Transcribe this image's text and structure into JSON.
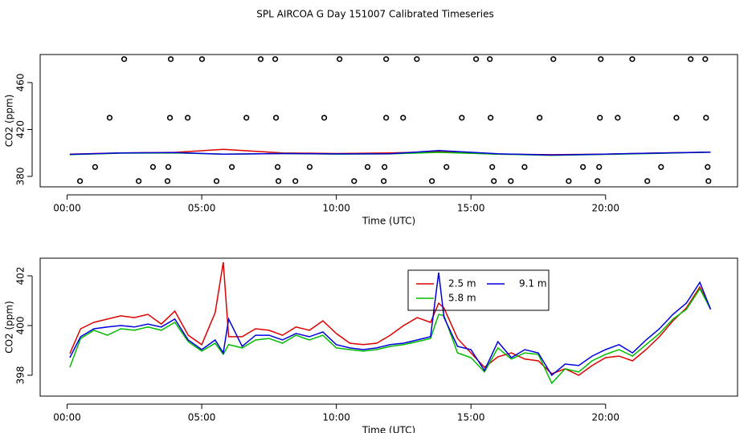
{
  "chart_data": [
    {
      "type": "scatter",
      "title": "SPL AIRCOA G  Day 151007  Calibrated Timeseries",
      "xlabel": "Time (UTC)",
      "ylabel": "CO2 (ppm)",
      "xlim": [
        -1.0,
        24.9
      ],
      "ylim": [
        371.1,
        483.9
      ],
      "xticks": [
        {
          "value": 0,
          "label": "00:00"
        },
        {
          "value": 5,
          "label": "05:00"
        },
        {
          "value": 10,
          "label": "10:00"
        },
        {
          "value": 15,
          "label": "15:00"
        },
        {
          "value": 20,
          "label": "20:00"
        }
      ],
      "yticks": [
        380,
        420,
        460
      ],
      "color": "#000000",
      "x": [
        2.12,
        3.85,
        5.01,
        7.19,
        7.73,
        10.12,
        11.85,
        12.99,
        15.19,
        15.7,
        18.06,
        19.82,
        20.99,
        23.16,
        23.7,
        1.58,
        3.82,
        4.48,
        6.66,
        7.76,
        9.55,
        11.85,
        12.48,
        14.66,
        15.73,
        17.55,
        19.79,
        20.45,
        22.63,
        23.73,
        1.04,
        3.19,
        3.76,
        6.12,
        7.82,
        9.01,
        11.16,
        11.79,
        14.09,
        15.79,
        16.99,
        19.16,
        19.76,
        22.06,
        23.79,
        0.48,
        2.66,
        3.73,
        5.55,
        7.85,
        8.48,
        10.66,
        11.76,
        13.55,
        15.85,
        16.48,
        18.63,
        19.7,
        21.55,
        23.82
      ],
      "values": [
        480,
        480,
        480,
        480,
        480,
        480,
        480,
        480,
        480,
        480,
        480,
        480,
        480,
        480,
        480,
        430,
        430,
        430,
        430,
        430,
        430,
        430,
        430,
        430,
        430,
        430,
        430,
        430,
        430,
        430,
        388,
        388,
        388,
        388,
        388,
        388,
        388,
        388,
        388,
        388,
        388,
        388,
        388,
        388,
        388,
        376,
        376,
        376,
        376,
        376,
        376,
        376,
        376,
        376,
        376,
        376,
        376,
        376,
        376,
        376
      ],
      "overlay": {
        "type": "line",
        "x": [
          0.1,
          2,
          4,
          5.8,
          8,
          10,
          12,
          13.8,
          16,
          18,
          20,
          22,
          23.9
        ],
        "series": [
          {
            "color": "#dd0000",
            "values": [
              399,
              400,
              400.5,
              403,
              400,
              399.5,
              400,
              401,
              399,
              398.5,
              399,
              400,
              400.7
            ]
          },
          {
            "color": "#00bb00",
            "values": [
              398.5,
              399.8,
              400,
              399,
              399.5,
              399,
              399.2,
              400.5,
              399,
              398,
              398.8,
              399.7,
              400.7
            ]
          },
          {
            "color": "#0000dd",
            "values": [
              398.8,
              400,
              400.3,
              399,
              399.5,
              399.2,
              399.3,
              402,
              399.3,
              398.2,
              399,
              399.9,
              400.7
            ]
          }
        ]
      }
    },
    {
      "type": "line",
      "xlabel": "Time (UTC)",
      "ylabel": "CO2 (ppm)",
      "xlim": [
        -1.0,
        24.9
      ],
      "ylim": [
        397.16,
        402.71
      ],
      "xticks": [
        {
          "value": 0,
          "label": "00:00"
        },
        {
          "value": 5,
          "label": "05:00"
        },
        {
          "value": 10,
          "label": "10:00"
        },
        {
          "value": 15,
          "label": "15:00"
        },
        {
          "value": 20,
          "label": "20:00"
        }
      ],
      "yticks": [
        398,
        400,
        402
      ],
      "legend": "top",
      "x": [
        0.1,
        0.5,
        1.0,
        1.5,
        2.0,
        2.5,
        3.0,
        3.5,
        4.0,
        4.5,
        5.0,
        5.5,
        5.8,
        6.0,
        6.5,
        7.0,
        7.5,
        8.0,
        8.5,
        9.0,
        9.5,
        10.0,
        10.5,
        11.0,
        11.5,
        12.0,
        12.5,
        13.0,
        13.5,
        13.8,
        14.0,
        14.5,
        15.0,
        15.5,
        16.0,
        16.5,
        17.0,
        17.5,
        18.0,
        18.5,
        19.0,
        19.5,
        20.0,
        20.5,
        21.0,
        21.5,
        22.0,
        22.5,
        23.0,
        23.5,
        23.9
      ],
      "series": [
        {
          "name": "2.5 m",
          "color": "#dd0000",
          "values": [
            398.87,
            399.87,
            400.13,
            400.26,
            400.39,
            400.32,
            400.45,
            400.06,
            400.58,
            399.61,
            399.23,
            400.52,
            402.55,
            399.55,
            399.55,
            399.87,
            399.81,
            399.61,
            399.94,
            399.81,
            400.19,
            399.68,
            399.29,
            399.23,
            399.29,
            399.61,
            400.0,
            400.32,
            400.13,
            400.9,
            400.7,
            399.48,
            398.9,
            398.32,
            398.74,
            398.9,
            398.65,
            398.58,
            398.06,
            398.26,
            398.0,
            398.39,
            398.71,
            398.77,
            398.58,
            399.03,
            399.55,
            400.19,
            400.71,
            401.55,
            400.65
          ]
        },
        {
          "name": "5.8 m",
          "color": "#00bb00",
          "values": [
            398.32,
            399.48,
            399.81,
            399.61,
            399.87,
            399.81,
            399.94,
            399.81,
            400.13,
            399.35,
            398.97,
            399.29,
            398.84,
            399.23,
            399.1,
            399.42,
            399.48,
            399.29,
            399.61,
            399.42,
            399.61,
            399.1,
            399.03,
            398.97,
            399.03,
            399.16,
            399.23,
            399.35,
            399.48,
            400.45,
            400.39,
            398.9,
            398.71,
            398.13,
            399.1,
            398.65,
            398.9,
            398.84,
            397.68,
            398.26,
            398.13,
            398.58,
            398.84,
            399.03,
            398.77,
            399.23,
            399.68,
            400.26,
            400.65,
            401.48,
            400.65
          ]
        },
        {
          "name": "9.1 m",
          "color": "#0000dd",
          "values": [
            398.71,
            399.55,
            399.87,
            399.94,
            400.0,
            399.94,
            400.06,
            399.94,
            400.26,
            399.42,
            399.03,
            399.42,
            398.9,
            400.26,
            399.16,
            399.61,
            399.61,
            399.42,
            399.68,
            399.55,
            399.74,
            399.23,
            399.1,
            399.03,
            399.1,
            399.23,
            399.29,
            399.42,
            399.55,
            402.13,
            400.32,
            399.16,
            399.03,
            398.19,
            399.35,
            398.71,
            399.03,
            398.9,
            398.0,
            398.45,
            398.39,
            398.77,
            399.03,
            399.23,
            398.9,
            399.42,
            399.87,
            400.45,
            400.9,
            401.74,
            400.65
          ]
        }
      ]
    }
  ]
}
